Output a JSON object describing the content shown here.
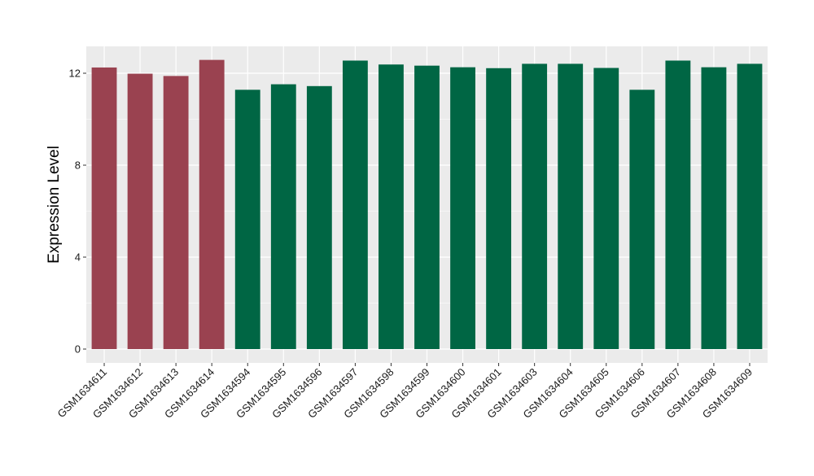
{
  "chart_data": {
    "type": "bar",
    "ylabel": "Expression Level",
    "xlabel": "",
    "ylim": [
      0,
      12.6
    ],
    "yticks": [
      0,
      4,
      8,
      12
    ],
    "grid": true,
    "categories": [
      "GSM1634611",
      "GSM1634612",
      "GSM1634613",
      "GSM1634614",
      "GSM1634594",
      "GSM1634595",
      "GSM1634596",
      "GSM1634597",
      "GSM1634598",
      "GSM1634599",
      "GSM1634600",
      "GSM1634601",
      "GSM1634603",
      "GSM1634604",
      "GSM1634605",
      "GSM1634606",
      "GSM1634607",
      "GSM1634608",
      "GSM1634609"
    ],
    "values": [
      12.25,
      11.98,
      11.88,
      12.58,
      11.28,
      11.52,
      11.44,
      12.55,
      12.38,
      12.33,
      12.26,
      12.22,
      12.41,
      12.41,
      12.23,
      11.28,
      12.55,
      12.26,
      12.41
    ],
    "groups": [
      "A",
      "A",
      "A",
      "A",
      "B",
      "B",
      "B",
      "B",
      "B",
      "B",
      "B",
      "B",
      "B",
      "B",
      "B",
      "B",
      "B",
      "B",
      "B"
    ],
    "group_colors": {
      "A": "#9a4250",
      "B": "#006644"
    },
    "panel_background": "#ebebeb",
    "grid_color": "#ffffff"
  }
}
